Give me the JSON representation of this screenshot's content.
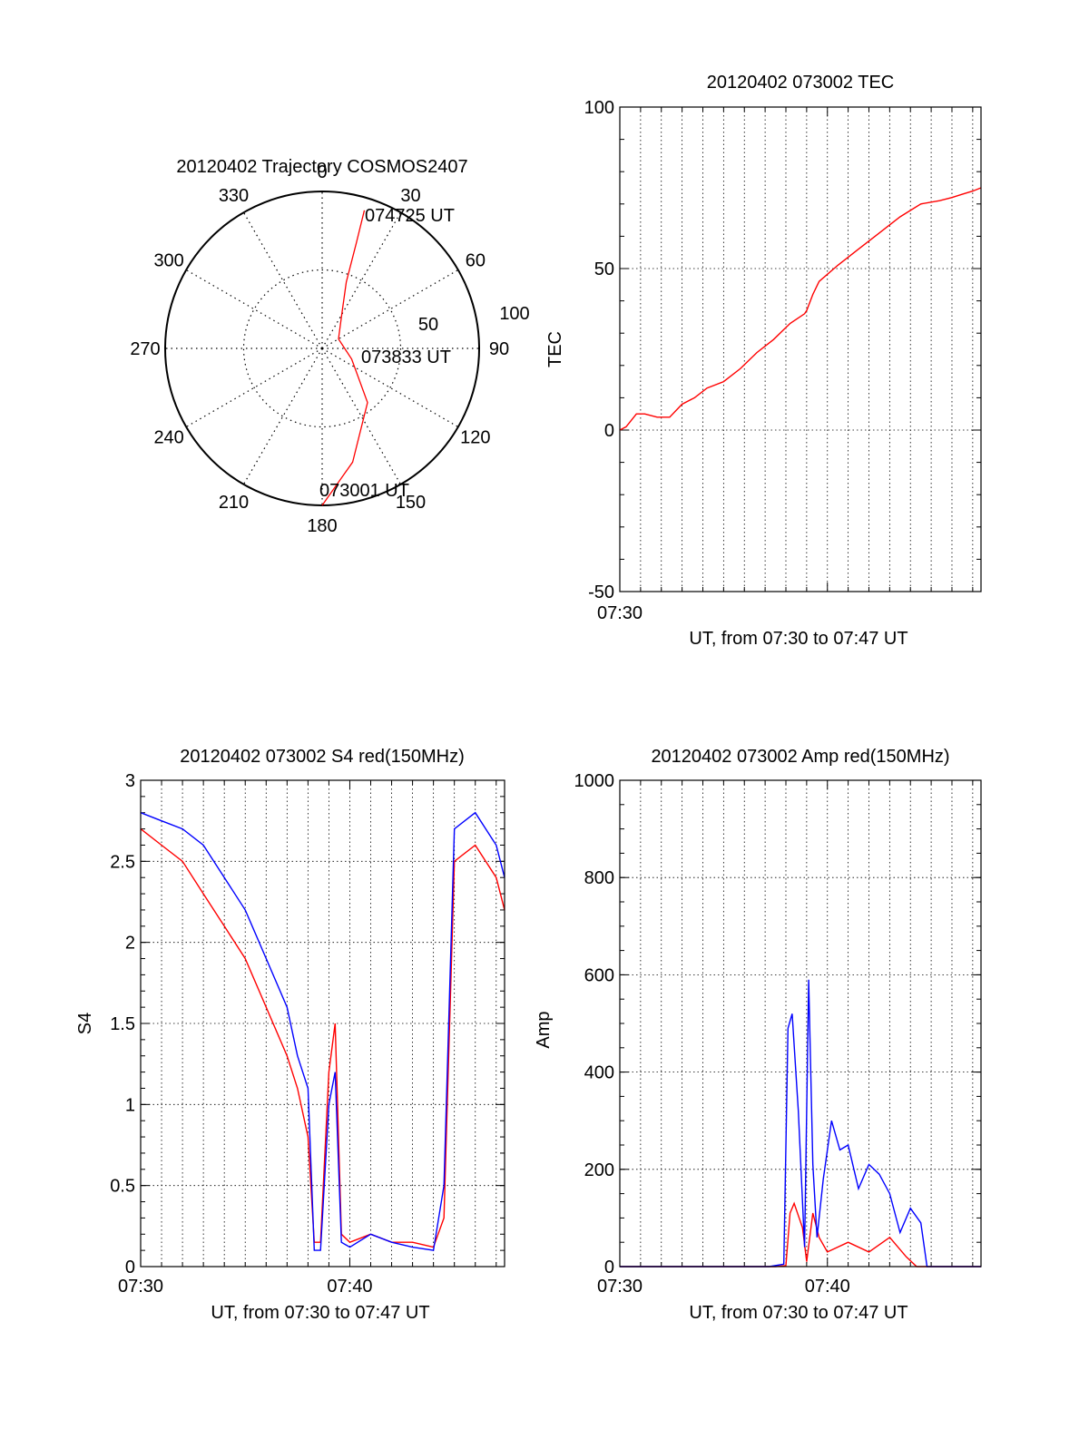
{
  "chart_data": [
    {
      "type": "polar",
      "title": "20120402 Trajectory COSMOS2407",
      "azimuth_labels": [
        "0",
        "30",
        "60",
        "90",
        "120",
        "150",
        "180",
        "210",
        "240",
        "270",
        "300",
        "330"
      ],
      "radial_labels": [
        "50",
        "100"
      ],
      "radial_range": [
        0,
        100
      ],
      "grid": true,
      "series": [
        {
          "color": "#ff0000",
          "points": [
            {
              "az": 180,
              "r": 100
            },
            {
              "az": 165,
              "r": 75
            },
            {
              "az": 140,
              "r": 45
            },
            {
              "az": 110,
              "r": 20
            },
            {
              "az": 60,
              "r": 12
            },
            {
              "az": 30,
              "r": 25
            },
            {
              "az": 20,
              "r": 45
            },
            {
              "az": 18,
              "r": 70
            },
            {
              "az": 17,
              "r": 92
            }
          ]
        }
      ],
      "annotations": [
        {
          "text": "074725 UT",
          "az": 17,
          "r": 92
        },
        {
          "text": "073833 UT",
          "az": 88,
          "r": 10
        },
        {
          "text": "073001 UT",
          "az": 180,
          "r": 100
        }
      ]
    },
    {
      "type": "line",
      "title": "20120402 073002 TEC",
      "ylabel": "TEC",
      "xlabel": "UT, from 07:30 to 07:47 UT",
      "xlim": [
        0,
        17.4
      ],
      "ylim": [
        -50,
        100
      ],
      "yticks": [
        "-50",
        "0",
        "50",
        "100"
      ],
      "xticks": [
        {
          "at": 0,
          "label": "07:30"
        }
      ],
      "grid": true,
      "series": [
        {
          "color": "#ff0000",
          "x": [
            0,
            0.3,
            0.8,
            1.2,
            1.8,
            2.4,
            3.0,
            3.6,
            4.2,
            5.0,
            5.8,
            6.6,
            7.4,
            8.2,
            8.9,
            9.0,
            9.3,
            9.6,
            10.5,
            11.5,
            12.5,
            13.5,
            14.5,
            15.4,
            16.0,
            16.5,
            17.0,
            17.4
          ],
          "y": [
            0,
            1,
            5,
            5,
            4,
            4,
            8,
            10,
            13,
            15,
            19,
            24,
            28,
            33,
            36,
            37,
            42,
            46,
            51,
            56,
            61,
            66,
            70,
            71,
            72,
            73,
            74,
            75
          ]
        }
      ]
    },
    {
      "type": "line",
      "title": "20120402 073002 S4 red(150MHz)",
      "ylabel": "S4",
      "xlabel": "UT, from 07:30 to 07:47 UT",
      "xlim": [
        0,
        17.4
      ],
      "ylim": [
        0,
        3
      ],
      "yticks": [
        "0",
        "0.5",
        "1",
        "1.5",
        "2",
        "2.5",
        "3"
      ],
      "xticks": [
        {
          "at": 0,
          "label": "07:30"
        },
        {
          "at": 10,
          "label": "07:40"
        }
      ],
      "grid": true,
      "series": [
        {
          "color": "#ff0000",
          "x": [
            0,
            1,
            2,
            3,
            4,
            5,
            6,
            7,
            7.5,
            8.0,
            8.3,
            8.6,
            9.0,
            9.3,
            9.6,
            10.0,
            11.0,
            12.0,
            13.0,
            14.0,
            14.5,
            15.0,
            16.0,
            17.0,
            17.4
          ],
          "y": [
            2.7,
            2.6,
            2.5,
            2.3,
            2.1,
            1.9,
            1.6,
            1.3,
            1.1,
            0.8,
            0.15,
            0.15,
            1.2,
            1.5,
            0.2,
            0.15,
            0.2,
            0.15,
            0.15,
            0.12,
            0.3,
            2.5,
            2.6,
            2.4,
            2.2
          ]
        },
        {
          "color": "#0000ff",
          "x": [
            0,
            1,
            2,
            3,
            4,
            5,
            6,
            7,
            7.5,
            8.0,
            8.3,
            8.6,
            9.0,
            9.3,
            9.6,
            10.0,
            11.0,
            12.0,
            13.0,
            14.0,
            14.5,
            15.0,
            16.0,
            17.0,
            17.4
          ],
          "y": [
            2.8,
            2.75,
            2.7,
            2.6,
            2.4,
            2.2,
            1.9,
            1.6,
            1.3,
            1.1,
            0.1,
            0.1,
            1.0,
            1.2,
            0.15,
            0.12,
            0.2,
            0.15,
            0.12,
            0.1,
            0.5,
            2.7,
            2.8,
            2.6,
            2.4
          ]
        }
      ]
    },
    {
      "type": "line",
      "title": "20120402 073002 Amp red(150MHz)",
      "ylabel": "Amp",
      "xlabel": "UT, from 07:30 to 07:47 UT",
      "xlim": [
        0,
        17.4
      ],
      "ylim": [
        0,
        1000
      ],
      "yticks": [
        "0",
        "200",
        "400",
        "600",
        "800",
        "1000"
      ],
      "xticks": [
        {
          "at": 0,
          "label": "07:30"
        },
        {
          "at": 10,
          "label": "07:40"
        }
      ],
      "grid": true,
      "series": [
        {
          "color": "#ff0000",
          "x": [
            0,
            7.5,
            8.0,
            8.2,
            8.4,
            8.8,
            9.0,
            9.3,
            9.6,
            10.0,
            11.0,
            12.0,
            13.0,
            13.8,
            14.3,
            17.4
          ],
          "y": [
            0,
            0,
            2,
            110,
            130,
            80,
            10,
            110,
            60,
            30,
            50,
            30,
            60,
            20,
            0,
            0
          ]
        },
        {
          "color": "#0000ff",
          "x": [
            0,
            7.2,
            7.9,
            8.1,
            8.3,
            8.6,
            8.9,
            9.1,
            9.3,
            9.5,
            9.8,
            10.2,
            10.6,
            11.0,
            11.5,
            12.0,
            12.5,
            13.0,
            13.5,
            14.0,
            14.5,
            14.8,
            17.4
          ],
          "y": [
            0,
            0,
            5,
            490,
            520,
            320,
            40,
            590,
            210,
            60,
            180,
            300,
            240,
            250,
            160,
            210,
            190,
            150,
            70,
            120,
            90,
            0,
            0
          ]
        }
      ]
    }
  ]
}
